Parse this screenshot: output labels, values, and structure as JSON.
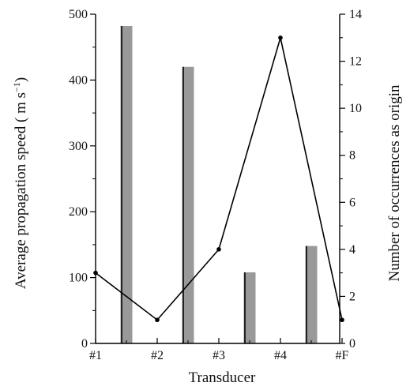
{
  "chart_data": {
    "type": "bar+line",
    "xlabel": "Transducer",
    "ylabel_left": "Average propagation speed ( m s",
    "ylabel_left_sup": "−1",
    "ylabel_left_close": ")",
    "ylabel_right": "Number of occurrences as origin",
    "categories": [
      "#1",
      "#2",
      "#3",
      "#4",
      "#F"
    ],
    "y_left": {
      "range": [
        0,
        500
      ],
      "ticks": [
        0,
        100,
        200,
        300,
        400,
        500
      ]
    },
    "y_right": {
      "range": [
        0,
        14
      ],
      "ticks": [
        0,
        2,
        4,
        6,
        8,
        10,
        12,
        14
      ]
    },
    "bars": {
      "axis": "left",
      "color": "#999999",
      "points": [
        {
          "x": 1.5,
          "value": 482
        },
        {
          "x": 2.5,
          "value": 420
        },
        {
          "x": 3.5,
          "value": 108
        },
        {
          "x": 4.5,
          "value": 148
        }
      ]
    },
    "line": {
      "axis": "right",
      "color": "#000000",
      "points": [
        {
          "x": 1,
          "value": 3
        },
        {
          "x": 2,
          "value": 1
        },
        {
          "x": 3,
          "value": 4
        },
        {
          "x": 4,
          "value": 13
        },
        {
          "x": 5,
          "value": 1
        }
      ]
    },
    "grid": false,
    "legend": "none"
  }
}
